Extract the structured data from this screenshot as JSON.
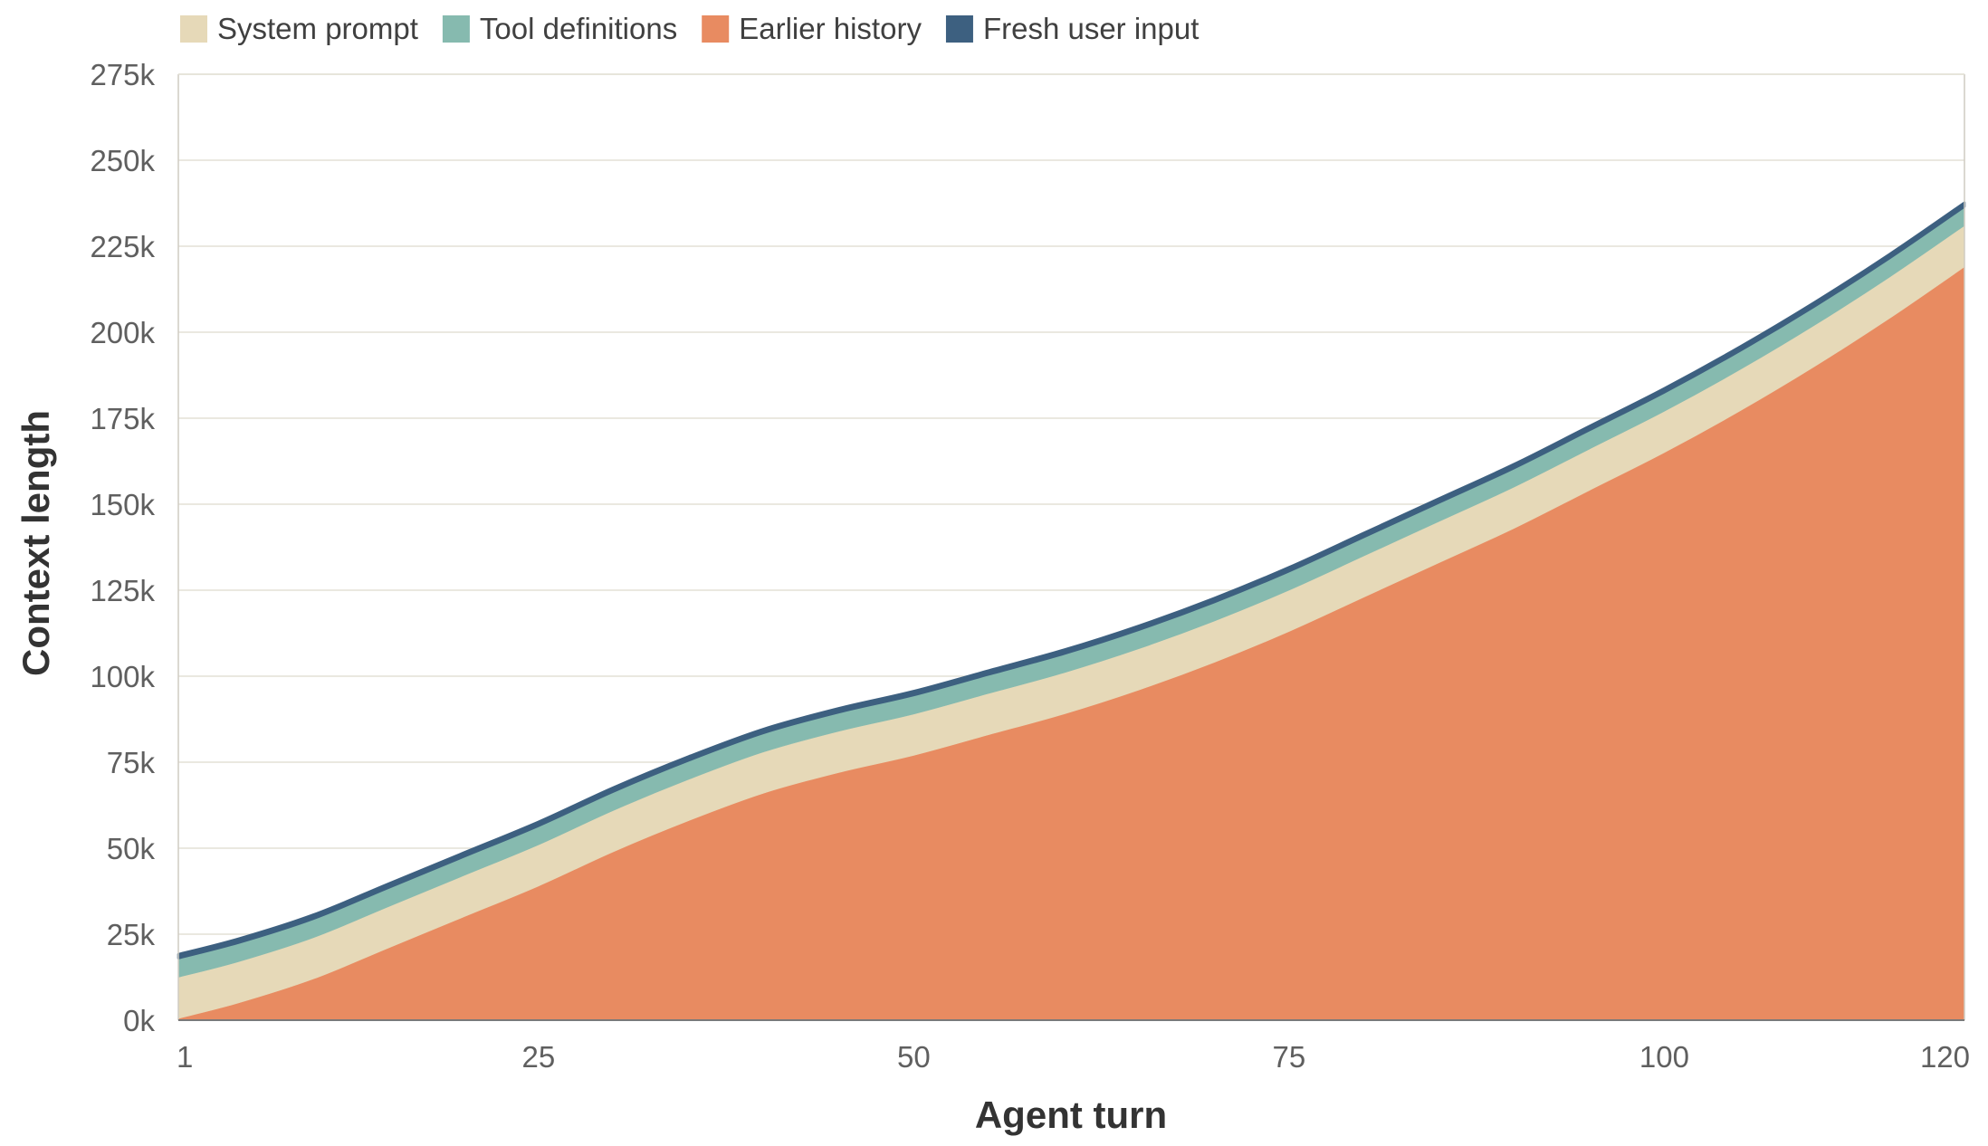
{
  "chart_data": {
    "type": "area",
    "stacked": true,
    "title": "",
    "xlabel": "Agent turn",
    "ylabel": "Context length",
    "x_ticks": [
      1,
      25,
      50,
      75,
      100,
      120
    ],
    "x_tick_labels": [
      "1",
      "25",
      "50",
      "75",
      "100",
      "120"
    ],
    "y_ticks": [
      0,
      25000,
      50000,
      75000,
      100000,
      125000,
      150000,
      175000,
      200000,
      225000,
      250000,
      275000
    ],
    "y_tick_labels": [
      "0k",
      "25k",
      "50k",
      "75k",
      "100k",
      "125k",
      "150k",
      "175k",
      "200k",
      "225k",
      "250k",
      "275k"
    ],
    "xlim": [
      1,
      120
    ],
    "ylim": [
      0,
      275000
    ],
    "grid": "horizontal",
    "legend_position": "top-left",
    "x": [
      1,
      5,
      10,
      15,
      20,
      25,
      30,
      35,
      40,
      45,
      50,
      55,
      60,
      65,
      70,
      75,
      80,
      85,
      90,
      95,
      100,
      105,
      110,
      115,
      120
    ],
    "series": [
      {
        "name": "Earlier history",
        "color": "#E88B61",
        "values": [
          500,
          5000,
          12000,
          21000,
          30000,
          39000,
          49000,
          58000,
          66000,
          72000,
          77000,
          83000,
          89000,
          96000,
          104000,
          113000,
          123000,
          133000,
          143000,
          154000,
          165000,
          177000,
          190000,
          204000,
          219000
        ]
      },
      {
        "name": "System prompt",
        "color": "#E6D9B8",
        "values": [
          12000,
          12000,
          12000,
          12000,
          12000,
          12000,
          12000,
          12000,
          12000,
          12000,
          12000,
          12000,
          12000,
          12000,
          12000,
          12000,
          12000,
          12000,
          12000,
          12000,
          12000,
          12000,
          12000,
          12000,
          12000
        ]
      },
      {
        "name": "Tool definitions",
        "color": "#86BAAF",
        "values": [
          5500,
          5500,
          5500,
          5500,
          5500,
          5500,
          5500,
          5500,
          5500,
          5500,
          5500,
          5500,
          5500,
          5500,
          5500,
          5500,
          5500,
          5500,
          5500,
          5500,
          5500,
          5500,
          5500,
          5500,
          5500
        ]
      },
      {
        "name": "Fresh user input",
        "color": "#3D6080",
        "values": [
          1200,
          1200,
          1200,
          1200,
          1200,
          1200,
          1200,
          1200,
          1200,
          1200,
          1200,
          1200,
          1200,
          1200,
          1200,
          1200,
          1200,
          1200,
          1200,
          1200,
          1200,
          1200,
          1200,
          1200,
          1200
        ]
      }
    ],
    "legend_order": [
      "System prompt",
      "Tool definitions",
      "Earlier history",
      "Fresh user input"
    ],
    "colors": {
      "grid": "#E4E1D6",
      "axis": "#CFCCC2",
      "baseline": "#7A7A7A",
      "tick_text": "#5f5f5f",
      "title_text": "#333333"
    }
  }
}
